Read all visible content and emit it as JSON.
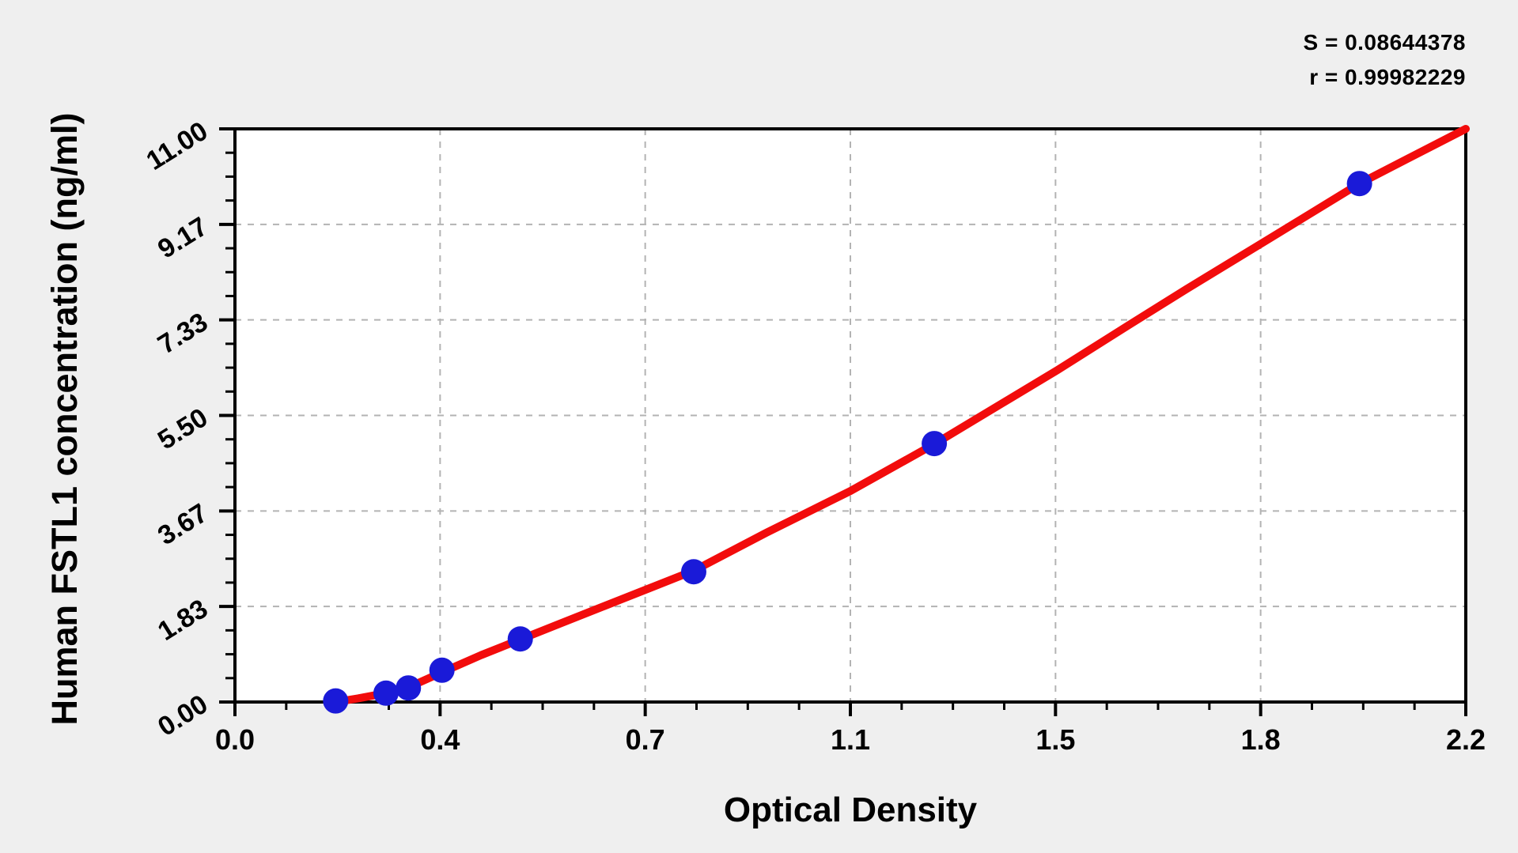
{
  "stats": {
    "s_line": "S = 0.08644378",
    "r_line": "r = 0.99982229"
  },
  "chart_data": {
    "type": "scatter",
    "title": "",
    "xlabel": "Optical Density",
    "ylabel": "Human FSTL1 concentration (ng/ml)",
    "xlim": [
      0,
      2.2
    ],
    "ylim": [
      0,
      11
    ],
    "x_major_ticks": {
      "values": [
        0,
        0.3667,
        0.7333,
        1.1,
        1.4667,
        1.8333,
        2.2
      ],
      "labels": [
        "0.0",
        "0.4",
        "0.7",
        "1.1",
        "1.5",
        "1.8",
        "2.2"
      ]
    },
    "y_major_ticks": {
      "values": [
        0,
        1.8333,
        3.6667,
        5.5,
        7.3333,
        9.1667,
        11
      ],
      "labels": [
        "0.00",
        "1.83",
        "3.67",
        "5.50",
        "7.33",
        "9.17",
        "11.00"
      ]
    },
    "minor_divisions_per_major": 4,
    "grid": {
      "style": "dashed",
      "at": "major-ticks",
      "color": "#b3b3b3"
    },
    "legend": "none",
    "annotations": {
      "S": "0.08644378",
      "r": "0.99982229"
    },
    "series": [
      {
        "name": "standard-points",
        "type": "scatter",
        "color": "#1a1ad8",
        "points": [
          {
            "od": 0.18,
            "conc": 0.02
          },
          {
            "od": 0.27,
            "conc": 0.17
          },
          {
            "od": 0.31,
            "conc": 0.27
          },
          {
            "od": 0.37,
            "conc": 0.61
          },
          {
            "od": 0.51,
            "conc": 1.21
          },
          {
            "od": 0.82,
            "conc": 2.5
          },
          {
            "od": 1.25,
            "conc": 4.96
          },
          {
            "od": 2.01,
            "conc": 9.95
          }
        ]
      },
      {
        "name": "fit-curve",
        "type": "line",
        "color": "#f20c0c",
        "points": [
          [
            0.18,
            0.0
          ],
          [
            0.22,
            0.07
          ],
          [
            0.27,
            0.17
          ],
          [
            0.31,
            0.28
          ],
          [
            0.37,
            0.57
          ],
          [
            0.44,
            0.9
          ],
          [
            0.51,
            1.2
          ],
          [
            0.58,
            1.5
          ],
          [
            0.66,
            1.84
          ],
          [
            0.74,
            2.18
          ],
          [
            0.82,
            2.52
          ],
          [
            0.95,
            3.25
          ],
          [
            1.1,
            4.05
          ],
          [
            1.25,
            4.95
          ],
          [
            1.47,
            6.37
          ],
          [
            1.6,
            7.25
          ],
          [
            1.7,
            7.92
          ],
          [
            1.85,
            8.9
          ],
          [
            2.01,
            9.95
          ],
          [
            2.1,
            10.45
          ],
          [
            2.2,
            11.0
          ]
        ]
      }
    ]
  },
  "colors": {
    "background": "#efefef",
    "plot_background": "#ffffff",
    "frame": "#000000",
    "grid": "#b3b3b3",
    "curve": "#f20c0c",
    "points": "#1a1ad8",
    "text": "#000000"
  }
}
